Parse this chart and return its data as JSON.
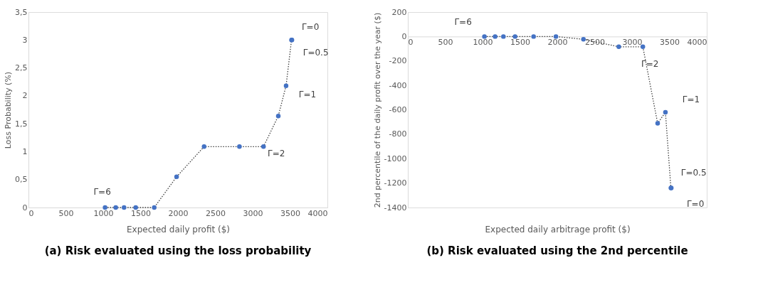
{
  "chart_data": [
    {
      "type": "line",
      "title": "(a) Risk evaluated using the loss probability",
      "xlabel": "Expected daily profit ($)",
      "ylabel": "Loss Probability (%)",
      "x": [
        1025,
        1168,
        1279,
        1435,
        1683,
        1982,
        2350,
        2823,
        3145,
        3343,
        3447,
        3520,
        3525
      ],
      "series": [
        {
          "color": "#4472c4",
          "values": [
            0,
            0,
            0,
            0,
            0,
            0.55,
            1.09,
            1.09,
            1.09,
            1.64,
            2.18,
            3.0,
            3.0
          ]
        }
      ],
      "xlim": [
        0,
        4000
      ],
      "xticks": [
        0,
        500,
        1000,
        1500,
        2000,
        2500,
        3000,
        3500,
        4000
      ],
      "ylim": [
        0,
        3.5
      ],
      "yticks": [
        0,
        {
          "value": 0.5,
          "label": "0,5"
        },
        1,
        {
          "value": 1.5,
          "label": "1,5"
        },
        2,
        {
          "value": 2.5,
          "label": "2,5"
        },
        3,
        {
          "value": 3.5,
          "label": "3,5"
        }
      ],
      "marker": "circle",
      "line_style": "dotted",
      "grid": false,
      "annotations": [
        {
          "text": "Γ=6",
          "x": 1025,
          "y": 0
        },
        {
          "text": "Γ=2",
          "x": 3145,
          "y": 1.09
        },
        {
          "text": "Γ=1",
          "x": 3447,
          "y": 2.18
        },
        {
          "text": "Γ=0.5",
          "x": 3520,
          "y": 3.0
        },
        {
          "text": "Γ=0",
          "x": 3525,
          "y": 3.0
        }
      ]
    },
    {
      "type": "line",
      "title": "(b) Risk evaluated using the 2nd percentile",
      "xlabel": "Expected daily arbitrage profit ($)",
      "ylabel": "2nd percentile of the daily profit over the year ($)",
      "x": [
        1025,
        1168,
        1279,
        1435,
        1683,
        1982,
        2350,
        2823,
        3145,
        3343,
        3447,
        3520,
        3525
      ],
      "series": [
        {
          "color": "#4472c4",
          "values": [
            0,
            0,
            0,
            0,
            0,
            0,
            -23,
            -84,
            -84,
            -711,
            -620,
            -1240,
            -1240
          ]
        }
      ],
      "xlim": [
        0,
        4000
      ],
      "xticks": [
        0,
        500,
        1000,
        1500,
        2000,
        2500,
        3000,
        3500,
        4000
      ],
      "ylim": [
        -1400,
        200
      ],
      "yticks": [
        -1400,
        -1200,
        -1000,
        -800,
        -600,
        -400,
        -200,
        0,
        200
      ],
      "marker": "circle",
      "line_style": "dotted",
      "grid": false,
      "annotations": [
        {
          "text": "Γ=6",
          "x": 1025,
          "y": 0
        },
        {
          "text": "Γ=2",
          "x": 3145,
          "y": -84
        },
        {
          "text": "Γ=1",
          "x": 3447,
          "y": -620
        },
        {
          "text": "Γ=0.5",
          "x": 3520,
          "y": -1240
        },
        {
          "text": "Γ=0",
          "x": 3525,
          "y": -1240
        }
      ]
    }
  ]
}
